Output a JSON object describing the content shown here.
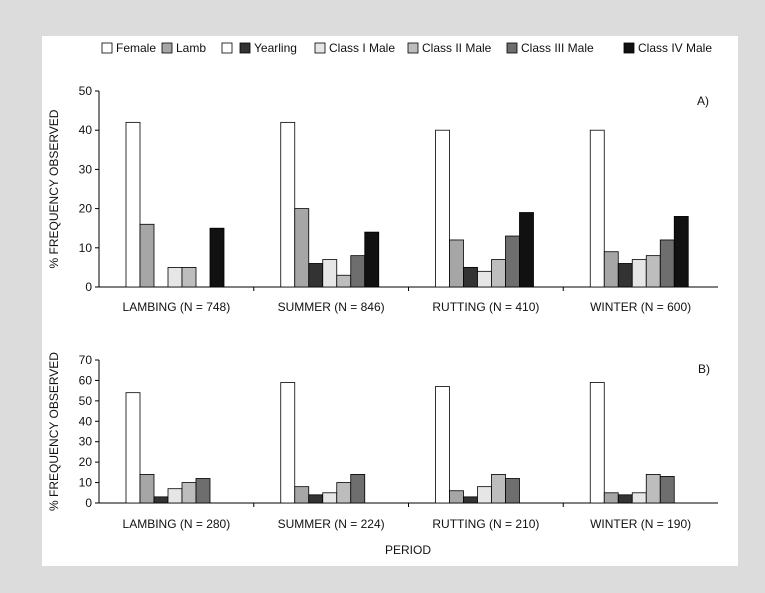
{
  "legend": [
    {
      "label": "Female",
      "color": "#ffffff"
    },
    {
      "label": "Lamb",
      "color": "#a6a6a6"
    },
    {
      "label": "",
      "color": "#ffffff"
    },
    {
      "label": "Yearling",
      "color": "#333333"
    },
    {
      "label": "Class I Male",
      "color": "#e6e6e6"
    },
    {
      "label": "Class II Male",
      "color": "#bdbdbd"
    },
    {
      "label": "Class III Male",
      "color": "#6e6e6e"
    },
    {
      "label": "Class IV Male",
      "color": "#111111"
    }
  ],
  "xlabel": "PERIOD",
  "chart_data": [
    {
      "type": "bar",
      "panel_label": "A)",
      "ylabel": "% FREQUENCY OBSERVED",
      "ylim": [
        0,
        50
      ],
      "yticks": [
        0,
        10,
        20,
        30,
        40,
        50
      ],
      "categories": [
        "LAMBING (N = 748)",
        "SUMMER (N = 846)",
        "RUTTING (N = 410)",
        "WINTER (N = 600)"
      ],
      "series": [
        {
          "name": "Female",
          "color": "#ffffff",
          "values": [
            42,
            42,
            40,
            40
          ]
        },
        {
          "name": "Lamb",
          "color": "#a6a6a6",
          "values": [
            16,
            20,
            12,
            9
          ]
        },
        {
          "name": "Yearling",
          "color": "#333333",
          "values": [
            0,
            6,
            5,
            6
          ]
        },
        {
          "name": "Class I Male",
          "color": "#e6e6e6",
          "values": [
            5,
            7,
            4,
            7
          ]
        },
        {
          "name": "Class II Male",
          "color": "#bdbdbd",
          "values": [
            5,
            3,
            7,
            8
          ]
        },
        {
          "name": "Class III Male",
          "color": "#6e6e6e",
          "values": [
            0,
            8,
            13,
            12
          ]
        },
        {
          "name": "Class IV Male",
          "color": "#111111",
          "values": [
            15,
            14,
            19,
            18
          ]
        }
      ]
    },
    {
      "type": "bar",
      "panel_label": "B)",
      "ylabel": "% FREQUENCY OBSERVED",
      "ylim": [
        0,
        70
      ],
      "yticks": [
        0,
        10,
        20,
        30,
        40,
        50,
        60,
        70
      ],
      "categories": [
        "LAMBING (N = 280)",
        "SUMMER (N = 224)",
        "RUTTING (N = 210)",
        "WINTER (N = 190)"
      ],
      "series": [
        {
          "name": "Female",
          "color": "#ffffff",
          "values": [
            54,
            59,
            57,
            59
          ]
        },
        {
          "name": "Lamb",
          "color": "#a6a6a6",
          "values": [
            14,
            8,
            6,
            5
          ]
        },
        {
          "name": "Yearling",
          "color": "#333333",
          "values": [
            3,
            4,
            3,
            4
          ]
        },
        {
          "name": "Class I Male",
          "color": "#e6e6e6",
          "values": [
            7,
            5,
            8,
            5
          ]
        },
        {
          "name": "Class II Male",
          "color": "#bdbdbd",
          "values": [
            10,
            10,
            14,
            14
          ]
        },
        {
          "name": "Class III Male",
          "color": "#6e6e6e",
          "values": [
            12,
            14,
            12,
            13
          ]
        }
      ]
    }
  ]
}
